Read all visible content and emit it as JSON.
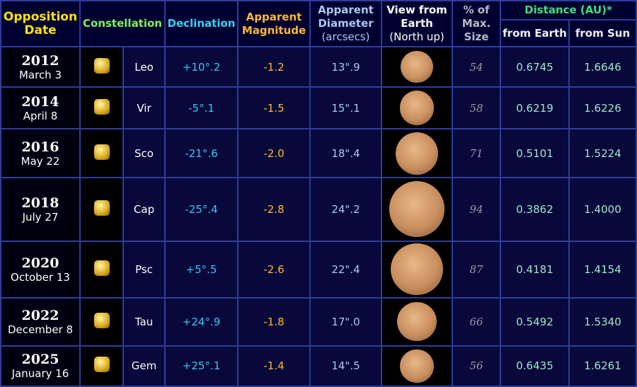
{
  "header": {
    "date": "Opposition Date",
    "constellation": "Constellation",
    "declination": "Declination",
    "magnitude": "Apparent Magnitude",
    "diameter": "Apparent Diameter",
    "diameter_unit": "(arcsecs)",
    "view": "View from Earth",
    "view_note": "(North up)",
    "size": "% of Max. Size",
    "distance": "Distance (AU)*",
    "from_earth": "from Earth",
    "from_sun": "from Sun"
  },
  "rows": [
    {
      "year": "2012",
      "date": "March 3",
      "constellation": "Leo",
      "declination": "+10°.2",
      "magnitude": "-1.2",
      "diameter": "13\".9",
      "size": "54",
      "from_earth": "0.6745",
      "from_sun": "1.6646"
    },
    {
      "year": "2014",
      "date": "April 8",
      "constellation": "Vir",
      "declination": "-5°.1",
      "magnitude": "-1.5",
      "diameter": "15\".1",
      "size": "58",
      "from_earth": "0.6219",
      "from_sun": "1.6226"
    },
    {
      "year": "2016",
      "date": "May 22",
      "constellation": "Sco",
      "declination": "-21°.6",
      "magnitude": "-2.0",
      "diameter": "18\".4",
      "size": "71",
      "from_earth": "0.5101",
      "from_sun": "1.5224"
    },
    {
      "year": "2018",
      "date": "July 27",
      "constellation": "Cap",
      "declination": "-25°.4",
      "magnitude": "-2.8",
      "diameter": "24\".2",
      "size": "94",
      "from_earth": "0.3862",
      "from_sun": "1.4000"
    },
    {
      "year": "2020",
      "date": "October 13",
      "constellation": "Psc",
      "declination": "+5°.5",
      "magnitude": "-2.6",
      "diameter": "22\".4",
      "size": "87",
      "from_earth": "0.4181",
      "from_sun": "1.4154"
    },
    {
      "year": "2022",
      "date": "December 8",
      "constellation": "Tau",
      "declination": "+24°.9",
      "magnitude": "-1.8",
      "diameter": "17\".0",
      "size": "66",
      "from_earth": "0.5492",
      "from_sun": "1.5340"
    },
    {
      "year": "2025",
      "date": "January 16",
      "constellation": "Gem",
      "declination": "+25°.1",
      "magnitude": "-1.4",
      "diameter": "14\".5",
      "size": "56",
      "from_earth": "0.6435",
      "from_sun": "1.6261"
    }
  ]
}
